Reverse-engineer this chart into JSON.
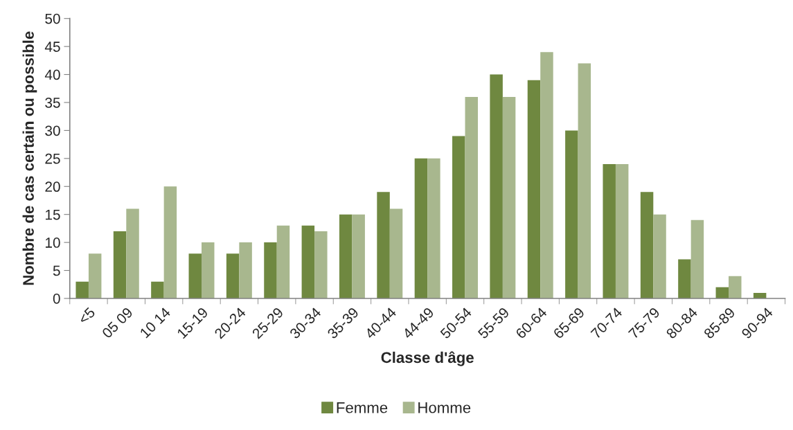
{
  "chart_data": {
    "type": "bar",
    "xlabel": "Classe d'âge",
    "ylabel": "Nombre de cas certain ou possible",
    "categories": [
      "<5",
      "05 09",
      "10 14",
      "15-19",
      "20-24",
      "25-29",
      "30-34",
      "35-39",
      "40-44",
      "44-49",
      "50-54",
      "55-59",
      "60-64",
      "65-69",
      "70-74",
      "75-79",
      "80-84",
      "85-89",
      "90-94"
    ],
    "series": [
      {
        "name": "Femme",
        "color": "#6f8840",
        "values": [
          3,
          12,
          3,
          8,
          8,
          10,
          13,
          15,
          19,
          25,
          29,
          40,
          39,
          30,
          24,
          19,
          7,
          2,
          1
        ]
      },
      {
        "name": "Homme",
        "color": "#a8b78e",
        "values": [
          8,
          16,
          20,
          10,
          10,
          13,
          12,
          15,
          16,
          25,
          36,
          36,
          44,
          42,
          24,
          15,
          14,
          4,
          null
        ]
      }
    ],
    "ylim": [
      0,
      50
    ],
    "yticks": [
      0,
      5,
      10,
      15,
      20,
      25,
      30,
      35,
      40,
      45,
      50
    ],
    "grid": false,
    "legend": "bottom"
  }
}
